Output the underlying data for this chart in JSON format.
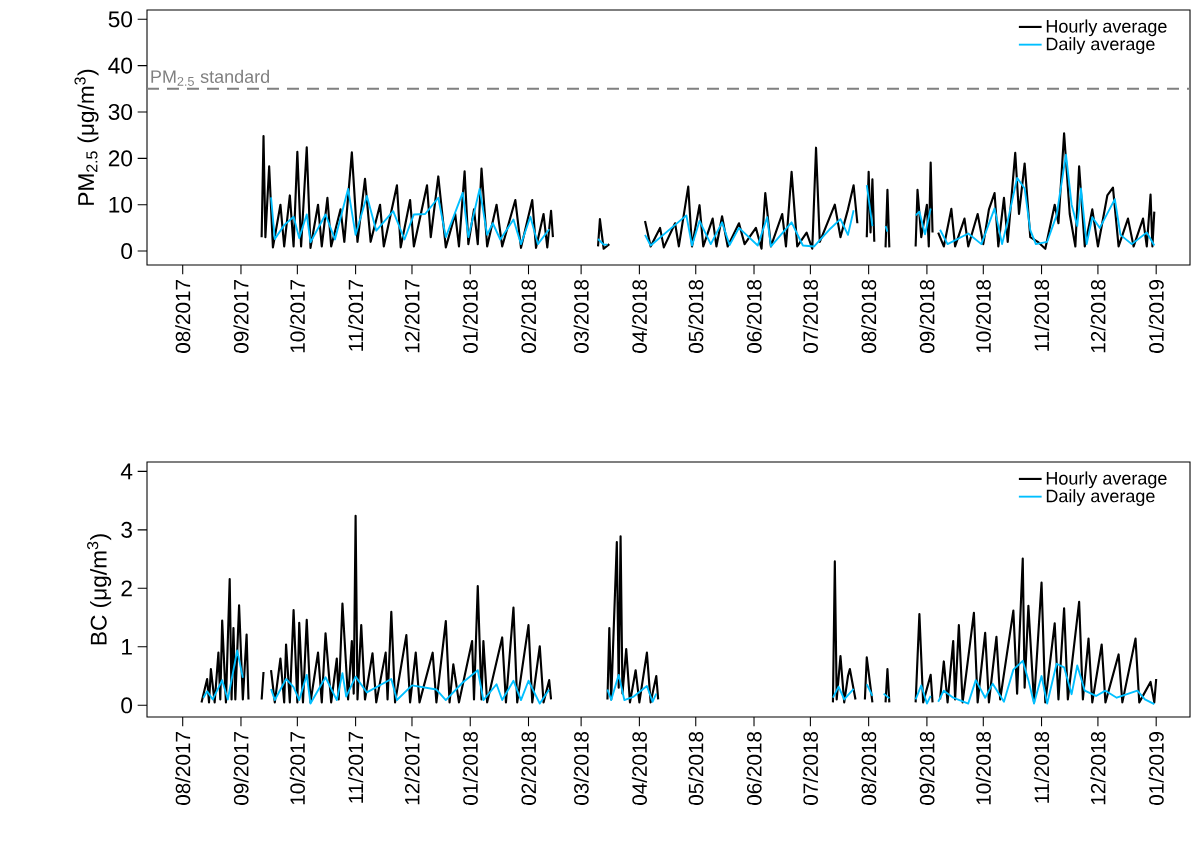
{
  "chart_data": [
    {
      "type": "line",
      "ylabel": "PM$_{2.5}$ (μg/m$^{3}$)",
      "xlim": [
        "2017-07-13",
        "2019-01-19"
      ],
      "ylim": [
        -3,
        52
      ],
      "yticks": [
        0,
        10,
        20,
        30,
        40,
        50
      ],
      "legend": "top right",
      "xticks": [
        {
          "value": "2017-08-01",
          "label": "08/2017"
        },
        {
          "value": "2017-09-01",
          "label": "09/2017"
        },
        {
          "value": "2017-10-01",
          "label": "10/2017"
        },
        {
          "value": "2017-11-01",
          "label": "11/2017"
        },
        {
          "value": "2017-12-01",
          "label": "12/2017"
        },
        {
          "value": "2018-01-01",
          "label": "01/2018"
        },
        {
          "value": "2018-02-01",
          "label": "02/2018"
        },
        {
          "value": "2018-03-01",
          "label": "03/2018"
        },
        {
          "value": "2018-04-01",
          "label": "04/2018"
        },
        {
          "value": "2018-05-01",
          "label": "05/2018"
        },
        {
          "value": "2018-06-01",
          "label": "06/2018"
        },
        {
          "value": "2018-07-01",
          "label": "07/2018"
        },
        {
          "value": "2018-08-01",
          "label": "08/2018"
        },
        {
          "value": "2018-09-01",
          "label": "09/2018"
        },
        {
          "value": "2018-10-01",
          "label": "10/2018"
        },
        {
          "value": "2018-11-01",
          "label": "11/2018"
        },
        {
          "value": "2018-12-01",
          "label": "12/2018"
        },
        {
          "value": "2019-01-01",
          "label": "01/2019"
        }
      ],
      "ref_lines": [
        {
          "axis": "y",
          "value": 35,
          "label": "PM$_{2.5}$ standard",
          "color": "#808080",
          "line_style": "dashed"
        }
      ],
      "series": [
        {
          "name": "Hourly average",
          "color": "#000000",
          "x": [
            "2017-09-12",
            "2017-09-13",
            "2017-09-14",
            "2017-09-16",
            "2017-09-18",
            "2017-09-22",
            "2017-09-24",
            "2017-09-27",
            "2017-09-29",
            "2017-10-01",
            "2017-10-03",
            "2017-10-06",
            "2017-10-08",
            "2017-10-12",
            "2017-10-14",
            "2017-10-17",
            "2017-10-19",
            "2017-10-24",
            "2017-10-26",
            "2017-10-30",
            "2017-11-02",
            "2017-11-06",
            "2017-11-09",
            "2017-11-14",
            "2017-11-16",
            "2017-11-23",
            "2017-11-25",
            "2017-11-30",
            "2017-12-02",
            "2017-12-09",
            "2017-12-11",
            "2017-12-15",
            "2017-12-19",
            "2017-12-24",
            "2017-12-26",
            "2017-12-29",
            "2017-12-31",
            "2018-01-03",
            "2018-01-05",
            "2018-01-07",
            "2018-01-10",
            "2018-01-15",
            "2018-01-18",
            "2018-01-25",
            "2018-01-28",
            "2018-02-03",
            "2018-02-05",
            "2018-02-09",
            "2018-02-11",
            "2018-02-13",
            "2018-02-14",
            "2018-02-25",
            "2018-03-10",
            "2018-03-11",
            "2018-03-13",
            "2018-03-16",
            "2018-03-25",
            "2018-04-04",
            "2018-04-07",
            "2018-04-12",
            "2018-04-14",
            "2018-04-20",
            "2018-04-22",
            "2018-04-27",
            "2018-04-29",
            "2018-05-03",
            "2018-05-05",
            "2018-05-10",
            "2018-05-12",
            "2018-05-15",
            "2018-05-18",
            "2018-05-24",
            "2018-05-27",
            "2018-06-02",
            "2018-06-05",
            "2018-06-07",
            "2018-06-10",
            "2018-06-16",
            "2018-06-18",
            "2018-06-21",
            "2018-06-24",
            "2018-06-29",
            "2018-07-02",
            "2018-07-04",
            "2018-07-06",
            "2018-07-11",
            "2018-07-14",
            "2018-07-17",
            "2018-07-21",
            "2018-07-24",
            "2018-07-26",
            "2018-07-28",
            "2018-07-31",
            "2018-08-01",
            "2018-08-02",
            "2018-08-03",
            "2018-08-04",
            "2018-08-07",
            "2018-08-10",
            "2018-08-11",
            "2018-08-12",
            "2018-08-20",
            "2018-08-26",
            "2018-08-27",
            "2018-08-29",
            "2018-09-01",
            "2018-09-02",
            "2018-09-03",
            "2018-09-04",
            "2018-09-06",
            "2018-09-07",
            "2018-09-10",
            "2018-09-14",
            "2018-09-16",
            "2018-09-21",
            "2018-09-23",
            "2018-09-28",
            "2018-10-01",
            "2018-10-04",
            "2018-10-07",
            "2018-10-09",
            "2018-10-12",
            "2018-10-14",
            "2018-10-18",
            "2018-10-20",
            "2018-10-23",
            "2018-10-26",
            "2018-10-30",
            "2018-11-03",
            "2018-11-08",
            "2018-11-10",
            "2018-11-13",
            "2018-11-16",
            "2018-11-19",
            "2018-11-21",
            "2018-11-24",
            "2018-11-28",
            "2018-12-01",
            "2018-12-06",
            "2018-12-09",
            "2018-12-12",
            "2018-12-17",
            "2018-12-20",
            "2018-12-25",
            "2018-12-27",
            "2018-12-29",
            "2018-12-30",
            "2018-12-31"
          ],
          "values": [
            3,
            24.8,
            3,
            18.3,
            0.8,
            10,
            1,
            12,
            1,
            21.4,
            1,
            22.4,
            0.7,
            10,
            1,
            11.5,
            1,
            9,
            2,
            21.3,
            2,
            15.6,
            2,
            10,
            1,
            14.2,
            0.8,
            11,
            1,
            14.2,
            3,
            16.1,
            0.8,
            8,
            1,
            17.2,
            1.5,
            9,
            1.5,
            17.8,
            1,
            10,
            1,
            11,
            0.7,
            11,
            0.7,
            8,
            0.8,
            8.7,
            3,
            null,
            1,
            6.9,
            0.5,
            1.5,
            null,
            6.5,
            1,
            5,
            0.8,
            6,
            1,
            13.9,
            1,
            9.9,
            1,
            7,
            1,
            7.5,
            1,
            6,
            1.5,
            5,
            0.5,
            12.5,
            1,
            8,
            1,
            17.1,
            1,
            4,
            0.5,
            22.3,
            2,
            7,
            10,
            3,
            9,
            14.2,
            6,
            null,
            3,
            17.1,
            4,
            15.5,
            2,
            null,
            0.8,
            13.2,
            0.8,
            null,
            1,
            13.2,
            3,
            10,
            1,
            19.1,
            4,
            null,
            4,
            1,
            9.1,
            1,
            7,
            1,
            8,
            1.5,
            9,
            12.5,
            1,
            11.5,
            2,
            21.2,
            8,
            18.9,
            3,
            2,
            0.5,
            10,
            6,
            25.4,
            8,
            1,
            18.3,
            1,
            9,
            1,
            12,
            13.7,
            1,
            7,
            1,
            7,
            1,
            12.2,
            1,
            8.5
          ]
        },
        {
          "name": "Daily average",
          "color": "#00bfff",
          "x": [
            "2017-09-17",
            "2017-09-19",
            "2017-09-24",
            "2017-09-29",
            "2017-10-02",
            "2017-10-06",
            "2017-10-08",
            "2017-10-16",
            "2017-10-21",
            "2017-10-28",
            "2017-11-01",
            "2017-11-07",
            "2017-11-12",
            "2017-11-21",
            "2017-11-27",
            "2017-12-02",
            "2017-12-08",
            "2017-12-15",
            "2017-12-19",
            "2017-12-28",
            "2017-12-31",
            "2018-01-06",
            "2018-01-10",
            "2018-01-13",
            "2018-01-17",
            "2018-01-24",
            "2018-01-28",
            "2018-02-02",
            "2018-02-06",
            "2018-02-12",
            "2018-02-25",
            "2018-03-10",
            "2018-03-13",
            "2018-03-15",
            "2018-03-25",
            "2018-04-04",
            "2018-04-07",
            "2018-04-26",
            "2018-04-29",
            "2018-05-03",
            "2018-05-09",
            "2018-05-15",
            "2018-05-19",
            "2018-05-24",
            "2018-06-03",
            "2018-06-08",
            "2018-06-10",
            "2018-06-21",
            "2018-06-27",
            "2018-07-03",
            "2018-07-11",
            "2018-07-17",
            "2018-07-21",
            "2018-07-24",
            "2018-07-28",
            "2018-07-31",
            "2018-08-03",
            "2018-08-07",
            "2018-08-10",
            "2018-08-11",
            "2018-08-20",
            "2018-08-26",
            "2018-08-28",
            "2018-08-31",
            "2018-09-03",
            "2018-09-06",
            "2018-09-08",
            "2018-09-12",
            "2018-09-23",
            "2018-09-30",
            "2018-10-07",
            "2018-10-11",
            "2018-10-14",
            "2018-10-19",
            "2018-10-23",
            "2018-10-26",
            "2018-10-29",
            "2018-11-04",
            "2018-11-09",
            "2018-11-14",
            "2018-11-17",
            "2018-11-20",
            "2018-11-22",
            "2018-11-25",
            "2018-11-28",
            "2018-12-02",
            "2018-12-10",
            "2018-12-13",
            "2018-12-19",
            "2018-12-27",
            "2018-12-31"
          ],
          "values": [
            11.6,
            2.6,
            5.6,
            7.4,
            2.8,
            7.9,
            1.9,
            7.9,
            2.5,
            13.4,
            3.5,
            11.9,
            4.4,
            8.6,
            2.5,
            7.9,
            8,
            11.5,
            3,
            12.6,
            3,
            13.4,
            3.5,
            6,
            2.5,
            6.8,
            1.5,
            7.4,
            1.5,
            4.7,
            null,
            2.6,
            1.4,
            1.4,
            null,
            3.5,
            1.2,
            7.7,
            1.2,
            6.5,
            1.5,
            6.2,
            1.3,
            5,
            1.2,
            7.3,
            1,
            6.2,
            1.2,
            1,
            4.6,
            6.9,
            3.5,
            8.8,
            null,
            14.2,
            5.4,
            null,
            5.4,
            4.2,
            null,
            7.7,
            8.5,
            3.6,
            9.2,
            null,
            4.6,
            1.5,
            3.8,
            1.5,
            9.2,
            1.5,
            6.5,
            15.8,
            13.5,
            4.5,
            1.5,
            2,
            7.7,
            20.8,
            10,
            5.4,
            13.5,
            1.5,
            7.3,
            5,
            11.2,
            3.5,
            1.5,
            4,
            1.2
          ]
        }
      ]
    },
    {
      "type": "line",
      "ylabel": "BC (μg/m$^{3}$)",
      "xlim": [
        "2017-07-13",
        "2019-01-19"
      ],
      "ylim": [
        -0.2,
        4.16
      ],
      "yticks": [
        0,
        1,
        2,
        3,
        4
      ],
      "legend": "top right",
      "xticks": [
        {
          "value": "2017-08-01",
          "label": "08/2017"
        },
        {
          "value": "2017-09-01",
          "label": "09/2017"
        },
        {
          "value": "2017-10-01",
          "label": "10/2017"
        },
        {
          "value": "2017-11-01",
          "label": "11/2017"
        },
        {
          "value": "2017-12-01",
          "label": "12/2017"
        },
        {
          "value": "2018-01-01",
          "label": "01/2018"
        },
        {
          "value": "2018-02-01",
          "label": "02/2018"
        },
        {
          "value": "2018-03-01",
          "label": "03/2018"
        },
        {
          "value": "2018-04-01",
          "label": "04/2018"
        },
        {
          "value": "2018-05-01",
          "label": "05/2018"
        },
        {
          "value": "2018-06-01",
          "label": "06/2018"
        },
        {
          "value": "2018-07-01",
          "label": "07/2018"
        },
        {
          "value": "2018-08-01",
          "label": "08/2018"
        },
        {
          "value": "2018-09-01",
          "label": "09/2018"
        },
        {
          "value": "2018-10-01",
          "label": "10/2018"
        },
        {
          "value": "2018-11-01",
          "label": "11/2018"
        },
        {
          "value": "2018-12-01",
          "label": "12/2018"
        },
        {
          "value": "2019-01-01",
          "label": "01/2019"
        }
      ],
      "series": [
        {
          "name": "Hourly average",
          "color": "#000000",
          "x": [
            "2017-08-11",
            "2017-08-14",
            "2017-08-15",
            "2017-08-16",
            "2017-08-18",
            "2017-08-20",
            "2017-08-21",
            "2017-08-22",
            "2017-08-24",
            "2017-08-26",
            "2017-08-27",
            "2017-08-28",
            "2017-08-29",
            "2017-08-31",
            "2017-09-02",
            "2017-09-04",
            "2017-09-05",
            "2017-09-08",
            "2017-09-12",
            "2017-09-13",
            "2017-09-15",
            "2017-09-17",
            "2017-09-19",
            "2017-09-22",
            "2017-09-24",
            "2017-09-25",
            "2017-09-27",
            "2017-09-29",
            "2017-10-01",
            "2017-10-02",
            "2017-10-04",
            "2017-10-06",
            "2017-10-08",
            "2017-10-12",
            "2017-10-14",
            "2017-10-16",
            "2017-10-19",
            "2017-10-22",
            "2017-10-23",
            "2017-10-25",
            "2017-10-28",
            "2017-10-30",
            "2017-10-31",
            "2017-11-01",
            "2017-11-02",
            "2017-11-04",
            "2017-11-06",
            "2017-11-10",
            "2017-11-12",
            "2017-11-17",
            "2017-11-18",
            "2017-11-20",
            "2017-11-22",
            "2017-11-28",
            "2017-11-30",
            "2017-12-03",
            "2017-12-05",
            "2017-12-12",
            "2017-12-14",
            "2017-12-19",
            "2017-12-21",
            "2017-12-23",
            "2017-12-26",
            "2018-01-02",
            "2018-01-03",
            "2018-01-05",
            "2018-01-07",
            "2018-01-08",
            "2018-01-10",
            "2018-01-18",
            "2018-01-20",
            "2018-01-24",
            "2018-01-26",
            "2018-02-01",
            "2018-02-03",
            "2018-02-07",
            "2018-02-09",
            "2018-02-12",
            "2018-02-13",
            "2018-02-25",
            "2018-03-15",
            "2018-03-16",
            "2018-03-17",
            "2018-03-20",
            "2018-03-21",
            "2018-03-22",
            "2018-03-23",
            "2018-03-25",
            "2018-03-27",
            "2018-03-30",
            "2018-04-01",
            "2018-04-05",
            "2018-04-07",
            "2018-04-10",
            "2018-04-11",
            "2018-04-20",
            "2018-07-13",
            "2018-07-14",
            "2018-07-15",
            "2018-07-17",
            "2018-07-19",
            "2018-07-21",
            "2018-07-22",
            "2018-07-25",
            "2018-07-28",
            "2018-07-30",
            "2018-07-31",
            "2018-08-03",
            "2018-08-06",
            "2018-08-10",
            "2018-08-11",
            "2018-08-12",
            "2018-08-20",
            "2018-08-26",
            "2018-08-28",
            "2018-08-30",
            "2018-09-03",
            "2018-09-04",
            "2018-09-06",
            "2018-09-08",
            "2018-09-10",
            "2018-09-12",
            "2018-09-15",
            "2018-09-16",
            "2018-09-18",
            "2018-09-20",
            "2018-09-26",
            "2018-09-28",
            "2018-10-02",
            "2018-10-04",
            "2018-10-08",
            "2018-10-10",
            "2018-10-17",
            "2018-10-19",
            "2018-10-22",
            "2018-10-23",
            "2018-10-25",
            "2018-10-28",
            "2018-11-01",
            "2018-11-03",
            "2018-11-08",
            "2018-11-10",
            "2018-11-13",
            "2018-11-15",
            "2018-11-21",
            "2018-11-23",
            "2018-11-26",
            "2018-11-28",
            "2018-12-03",
            "2018-12-05",
            "2018-12-12",
            "2018-12-14",
            "2018-12-21",
            "2018-12-23",
            "2018-12-29",
            "2018-12-31",
            "2019-01-01"
          ],
          "values": [
            0.05,
            0.45,
            0.05,
            0.62,
            0.05,
            0.9,
            0.1,
            1.45,
            0.05,
            2.16,
            0.1,
            1.32,
            0.1,
            1.71,
            0.1,
            1.21,
            0.1,
            null,
            0.1,
            0.57,
            null,
            0.6,
            0.05,
            0.8,
            0.05,
            1.04,
            0.05,
            1.63,
            0.05,
            1.41,
            0.05,
            1.46,
            0.05,
            0.9,
            0.05,
            1.23,
            0.05,
            0.8,
            0.1,
            1.74,
            0.1,
            1.1,
            0.2,
            3.24,
            0.1,
            1.37,
            0.1,
            0.89,
            0.05,
            0.9,
            0.1,
            1.6,
            0.05,
            1.2,
            0.05,
            0.9,
            0.05,
            0.9,
            0.05,
            1.44,
            0.05,
            0.7,
            0.05,
            1.1,
            0.1,
            2.04,
            0.1,
            1.1,
            0.05,
            1.16,
            0.05,
            1.67,
            0.05,
            1.37,
            0.05,
            1.01,
            0.05,
            0.43,
            0.1,
            null,
            0.1,
            1.32,
            0.1,
            2.79,
            0.3,
            2.89,
            0.2,
            0.96,
            0.05,
            0.6,
            0.05,
            0.9,
            0.05,
            0.5,
            0.1,
            null,
            0.05,
            2.46,
            0.1,
            0.84,
            0.05,
            0.5,
            0.62,
            0.1,
            null,
            0.1,
            0.82,
            0.05,
            null,
            0.05,
            0.62,
            0.05,
            null,
            0.05,
            1.56,
            0.05,
            0.52,
            0.05,
            null,
            0.1,
            0.75,
            0.05,
            1.1,
            0.1,
            1.37,
            0.05,
            1.58,
            0.05,
            1.24,
            0.05,
            1.17,
            0.1,
            1.62,
            0.2,
            2.51,
            0.3,
            1.7,
            0.05,
            2.1,
            0.05,
            1.4,
            0.1,
            1.66,
            0.1,
            1.77,
            0.1,
            1.14,
            0.05,
            1.04,
            0.05,
            0.87,
            0.05,
            1.14,
            0.05,
            0.4,
            0.05,
            0.45
          ]
        },
        {
          "name": "Daily average",
          "color": "#00bfff",
          "x": [
            "2017-08-12",
            "2017-08-14",
            "2017-08-17",
            "2017-08-22",
            "2017-08-25",
            "2017-08-30",
            "2017-09-02",
            "2017-09-08",
            "2017-09-17",
            "2017-09-19",
            "2017-09-25",
            "2017-09-29",
            "2017-10-02",
            "2017-10-06",
            "2017-10-08",
            "2017-10-16",
            "2017-10-22",
            "2017-10-25",
            "2017-10-27",
            "2017-11-01",
            "2017-11-07",
            "2017-11-20",
            "2017-11-23",
            "2017-12-01",
            "2017-12-14",
            "2017-12-19",
            "2017-12-28",
            "2018-01-05",
            "2018-01-08",
            "2018-01-15",
            "2018-01-18",
            "2018-01-24",
            "2018-01-28",
            "2018-02-01",
            "2018-02-07",
            "2018-02-12",
            "2018-02-25",
            "2018-03-15",
            "2018-03-17",
            "2018-03-21",
            "2018-03-24",
            "2018-03-29",
            "2018-04-05",
            "2018-04-08",
            "2018-04-10",
            "2018-04-20",
            "2018-07-13",
            "2018-07-16",
            "2018-07-19",
            "2018-07-24",
            "2018-07-28",
            "2018-07-31",
            "2018-08-03",
            "2018-08-06",
            "2018-08-09",
            "2018-08-12",
            "2018-08-20",
            "2018-08-26",
            "2018-08-29",
            "2018-09-01",
            "2018-09-03",
            "2018-09-06",
            "2018-09-07",
            "2018-09-10",
            "2018-09-15",
            "2018-09-23",
            "2018-09-27",
            "2018-10-02",
            "2018-10-06",
            "2018-10-12",
            "2018-10-17",
            "2018-10-22",
            "2018-10-25",
            "2018-10-28",
            "2018-11-01",
            "2018-11-04",
            "2018-11-09",
            "2018-11-13",
            "2018-11-17",
            "2018-11-20",
            "2018-11-24",
            "2018-11-30",
            "2018-12-05",
            "2018-12-11",
            "2018-12-22",
            "2018-12-26",
            "2018-12-31"
          ],
          "values": [
            0.13,
            0.24,
            0.1,
            0.43,
            0.1,
            0.94,
            0.47,
            null,
            0.28,
            0.09,
            0.45,
            0.31,
            0.09,
            0.52,
            0.03,
            0.48,
            0.09,
            0.55,
            0.15,
            0.49,
            0.22,
            0.45,
            0.09,
            0.34,
            0.27,
            0.09,
            0.39,
            0.6,
            0.09,
            0.36,
            0.09,
            0.42,
            0.09,
            0.42,
            0.03,
            0.27,
            null,
            0.27,
            0.09,
            0.52,
            0.09,
            0.15,
            0.33,
            0.06,
            0.2,
            null,
            0.13,
            0.32,
            0.1,
            0.28,
            null,
            0.36,
            0.16,
            null,
            0.2,
            0.12,
            null,
            0.1,
            0.34,
            0.03,
            0.16,
            null,
            0.06,
            0.25,
            0.13,
            0.03,
            0.43,
            0.13,
            0.37,
            0.06,
            0.61,
            0.76,
            0.43,
            0.03,
            0.5,
            0.03,
            0.71,
            0.65,
            0.19,
            0.68,
            0.25,
            0.16,
            0.25,
            0.13,
            0.25,
            0.1,
            0.02
          ]
        }
      ]
    }
  ]
}
